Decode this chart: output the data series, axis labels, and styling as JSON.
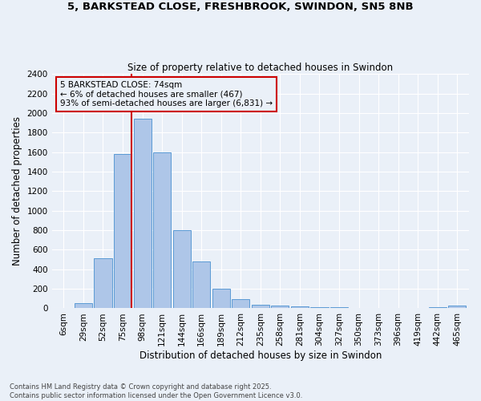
{
  "title1": "5, BARKSTEAD CLOSE, FRESHBROOK, SWINDON, SN5 8NB",
  "title2": "Size of property relative to detached houses in Swindon",
  "xlabel": "Distribution of detached houses by size in Swindon",
  "ylabel": "Number of detached properties",
  "footnote": "Contains HM Land Registry data © Crown copyright and database right 2025.\nContains public sector information licensed under the Open Government Licence v3.0.",
  "categories": [
    "6sqm",
    "29sqm",
    "52sqm",
    "75sqm",
    "98sqm",
    "121sqm",
    "144sqm",
    "166sqm",
    "189sqm",
    "212sqm",
    "235sqm",
    "258sqm",
    "281sqm",
    "304sqm",
    "327sqm",
    "350sqm",
    "373sqm",
    "396sqm",
    "419sqm",
    "442sqm",
    "465sqm"
  ],
  "values": [
    0,
    55,
    510,
    1580,
    1940,
    1600,
    800,
    480,
    200,
    90,
    40,
    30,
    20,
    10,
    10,
    5,
    5,
    0,
    0,
    15,
    25
  ],
  "bar_color": "#aec6e8",
  "bar_edge_color": "#5b9bd5",
  "bg_color": "#eaf0f8",
  "grid_color": "#ffffff",
  "vline_x": 3.43,
  "vline_color": "#cc0000",
  "annotation_text": "5 BARKSTEAD CLOSE: 74sqm\n← 6% of detached houses are smaller (467)\n93% of semi-detached houses are larger (6,831) →",
  "annotation_box_color": "#cc0000",
  "ylim": [
    0,
    2400
  ],
  "yticks": [
    0,
    200,
    400,
    600,
    800,
    1000,
    1200,
    1400,
    1600,
    1800,
    2000,
    2200,
    2400
  ]
}
